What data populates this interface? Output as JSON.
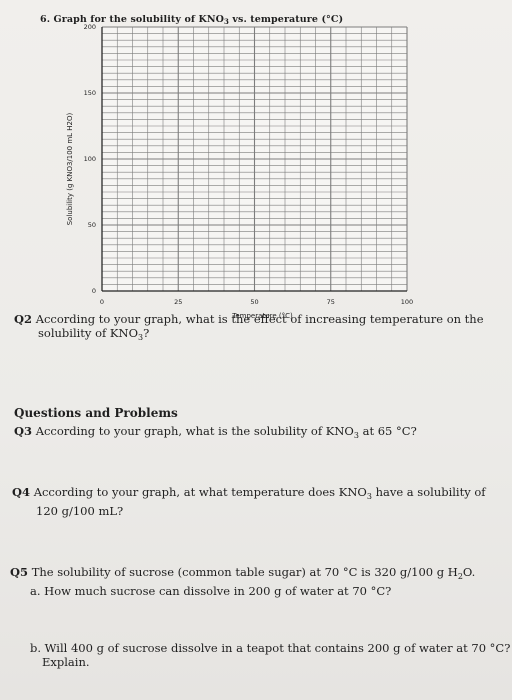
{
  "title": {
    "number": "6.",
    "text_a": "Graph for the solubility of KNO",
    "sub": "3",
    "text_b": " vs. temperature (°C)"
  },
  "chart_data": {
    "type": "line",
    "xlabel": "Temperature (°C)",
    "ylabel": "Solubility (g KNO3/100 mL H2O)",
    "xlim": [
      0,
      100
    ],
    "ylim": [
      0,
      200
    ],
    "x_ticks": [
      0,
      25,
      50,
      75,
      100
    ],
    "y_ticks": [
      0,
      50,
      100,
      150,
      200
    ],
    "grid": true,
    "series": []
  },
  "questions": {
    "q2": {
      "num": "Q2",
      "line1": "According to your graph, what is the effect of increasing temperature on the",
      "line2_a": "solubility of KNO",
      "line2_sub": "3",
      "line2_b": "?"
    },
    "heading": "Questions and Problems",
    "q3": {
      "num": "Q3",
      "text_a": "According to your graph, what is the solubility of KNO",
      "sub": "3",
      "text_b": " at 65 °C?"
    },
    "q4": {
      "num": "Q4",
      "line1_a": "According to your graph, at what temperature does KNO",
      "line1_sub": "3",
      "line1_b": " have a solubility of",
      "line2": "120 g/100 mL?"
    },
    "q5": {
      "num": "Q5",
      "text_a": "The solubility of sucrose (common table sugar) at 70 °C is 320 g/100 g H",
      "sub": "2",
      "text_b": "O.",
      "a": "a. How much sucrose can dissolve in 200 g of water at 70 °C?",
      "b_line1": "b. Will 400 g of sucrose dissolve in a teapot that contains 200 g of water at 70 °C?",
      "b_line2": "Explain."
    }
  }
}
